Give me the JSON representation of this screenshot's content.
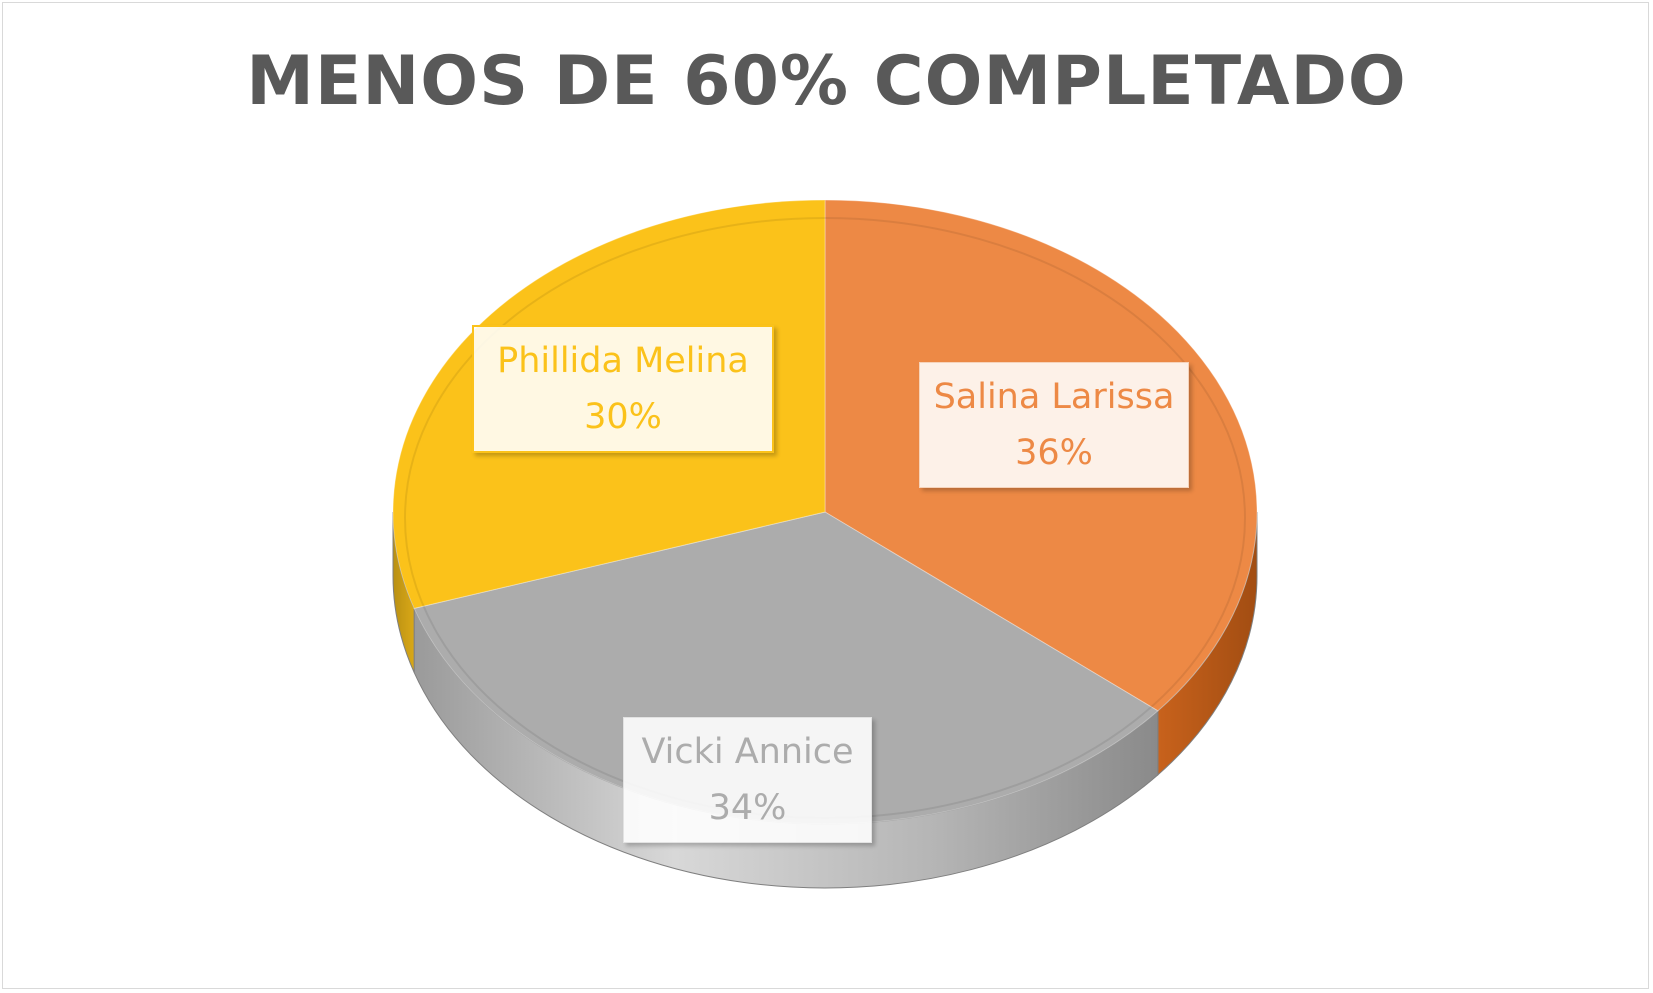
{
  "chart_data": {
    "type": "pie",
    "style": "3d",
    "title": "MENOS DE 60% COMPLETADO",
    "slices": [
      {
        "name": "Salina Larissa",
        "value": 36,
        "label": "36%",
        "color": "#ed8945"
      },
      {
        "name": "Vicki Annice",
        "value": 34,
        "label": "34%",
        "color": "#acacac"
      },
      {
        "name": "Phillida Melina",
        "value": 30,
        "label": "30%",
        "color": "#fbc21a"
      }
    ]
  },
  "colors": {
    "title": "#595959",
    "border": "#d9d9d9",
    "background": "#ffffff"
  }
}
